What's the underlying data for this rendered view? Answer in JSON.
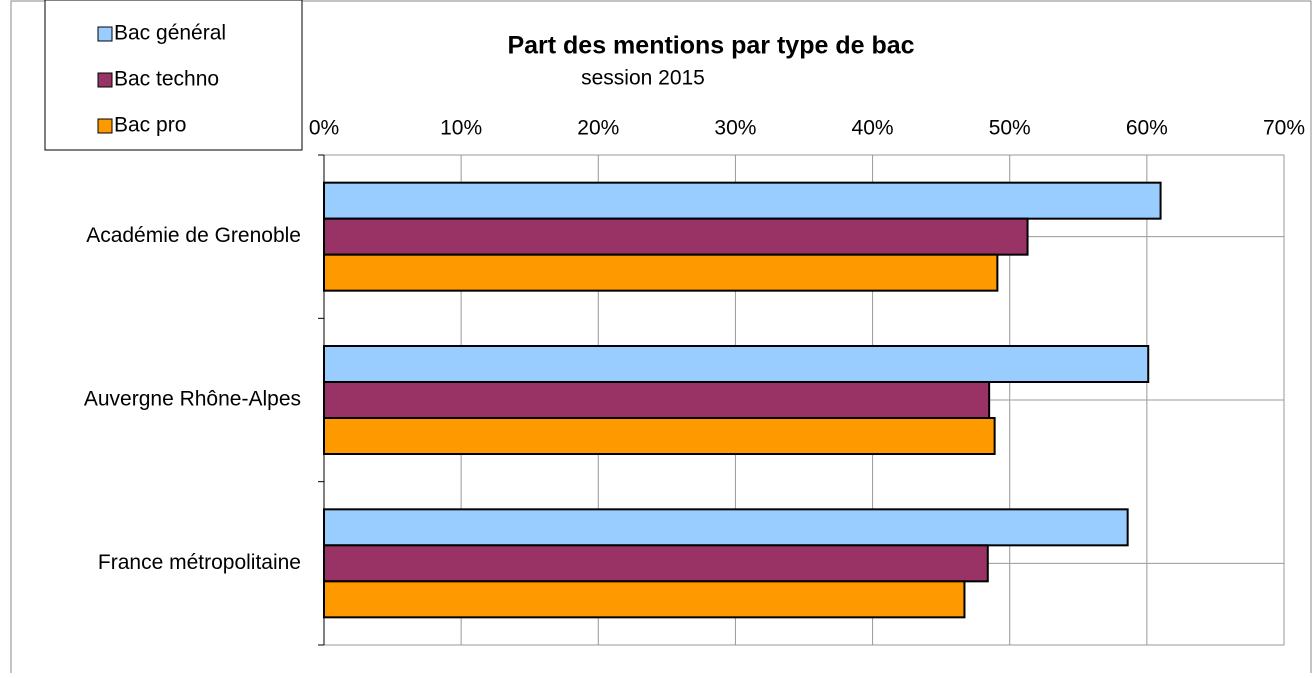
{
  "chart_data": {
    "type": "barh",
    "title": "Part des mentions par type de bac",
    "subtitle": "session 2015",
    "categories": [
      "Académie de Grenoble",
      "Auvergne Rhône-Alpes",
      "France métropolitaine"
    ],
    "series": [
      {
        "name": "Bac général",
        "color": "#99ccff",
        "values": [
          61.0,
          60.1,
          58.6
        ]
      },
      {
        "name": "Bac techno",
        "color": "#993366",
        "values": [
          51.3,
          48.5,
          48.4
        ]
      },
      {
        "name": "Bac pro",
        "color": "#ff9900",
        "values": [
          49.1,
          48.9,
          46.7
        ]
      }
    ],
    "xlim": [
      0,
      70
    ],
    "xticks": [
      {
        "value": 0,
        "label": "0%"
      },
      {
        "value": 10,
        "label": "10%"
      },
      {
        "value": 20,
        "label": "20%"
      },
      {
        "value": 30,
        "label": "30%"
      },
      {
        "value": 40,
        "label": "40%"
      },
      {
        "value": 50,
        "label": "50%"
      },
      {
        "value": 60,
        "label": "60%"
      },
      {
        "value": 70,
        "label": "70%"
      }
    ],
    "grid": true,
    "legend": "top-left"
  }
}
